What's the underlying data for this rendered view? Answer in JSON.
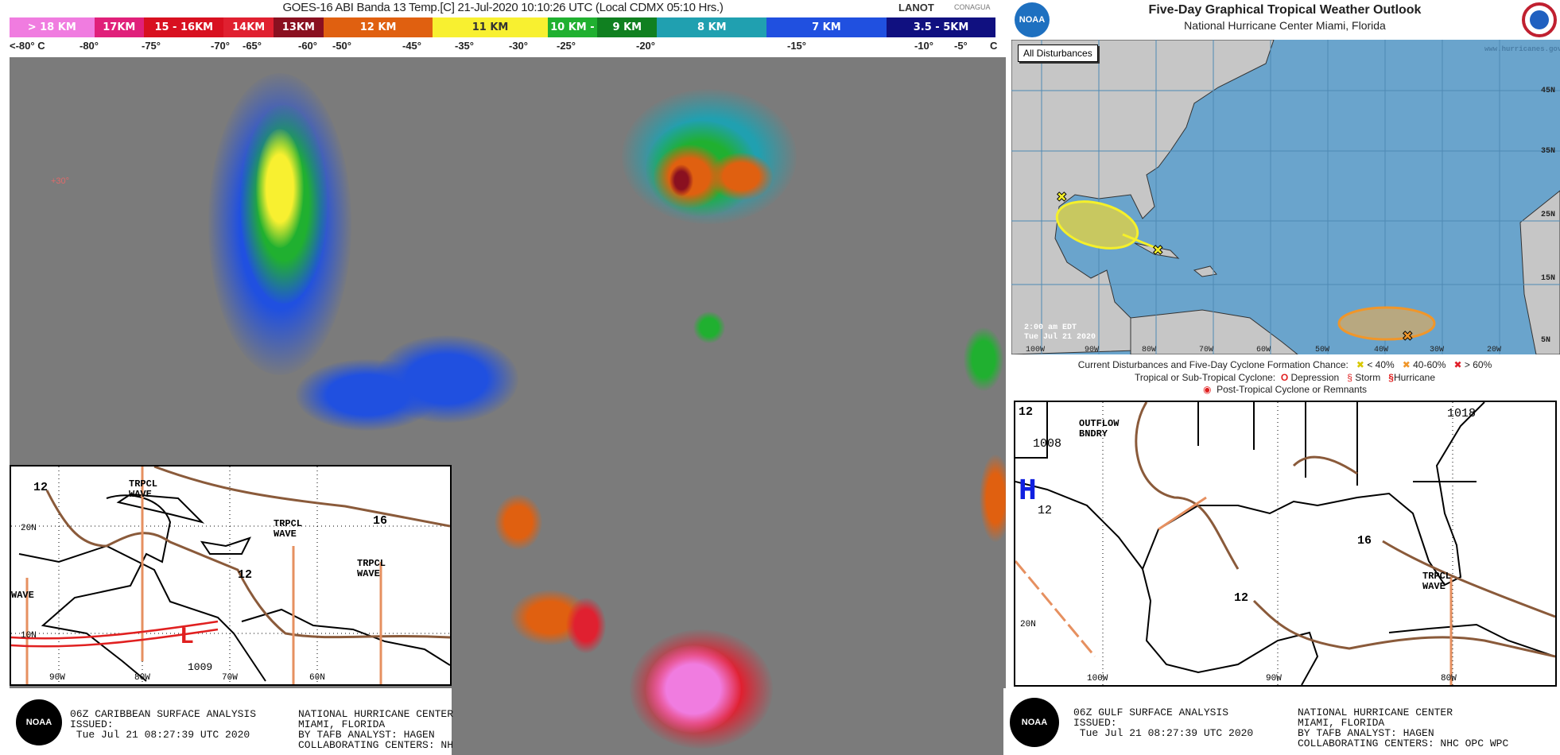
{
  "satellite": {
    "title": "GOES-16 ABI Banda 13 Temp.[C] 21-Jul-2020 10:10:26 UTC (Local CDMX  05:10 Hrs.)",
    "logos": [
      "LANOT",
      "CONAGUA"
    ],
    "color_scale": [
      {
        "label": "> 18 KM",
        "color": "#f07ce0"
      },
      {
        "label": "17KM",
        "color": "#e0207a"
      },
      {
        "label": "15 - 16KM",
        "color": "#d81020"
      },
      {
        "label": "14KM",
        "color": "#e02030"
      },
      {
        "label": "13KM",
        "color": "#8a1020"
      },
      {
        "label": "12 KM",
        "color": "#e06010"
      },
      {
        "label": "11 KM",
        "color": "#f8f030"
      },
      {
        "label": "10 KM -",
        "color": "#20b030"
      },
      {
        "label": "9 KM",
        "color": "#108020"
      },
      {
        "label": "8 KM",
        "color": "#20a0b0"
      },
      {
        "label": "7 KM",
        "color": "#2050e0"
      },
      {
        "label": "3.5 - 5KM",
        "color": "#101080"
      }
    ],
    "temperatures": [
      "<-80° C",
      "-80°",
      "-75°",
      "-70°",
      "-65°",
      "-60°",
      "-50°",
      "-45°",
      "-35°",
      "-30°",
      "-25°",
      "-20°",
      "-15°",
      "-10°",
      "-5°",
      "C"
    ],
    "lat_label": "+30°"
  },
  "caribbean": {
    "labels": {
      "isobar_12a": "12",
      "isobar_12b": "12",
      "isobar_16": "16",
      "wave1": "TRPCL\nWAVE",
      "wave2": "TRPCL\nWAVE",
      "wave3": "TRPCL\nWAVE",
      "wave_left": "WAVE",
      "lat20": "20N",
      "lat10": "10N",
      "lon90": "90W",
      "lon80": "80W",
      "lon70": "70W",
      "lon60": "60N",
      "low": "L",
      "low_pressure": "1009"
    },
    "caption": {
      "left": "06Z CARIBBEAN SURFACE ANALYSIS\nISSUED:\n Tue Jul 21 08:27:39 UTC 2020",
      "right": "NATIONAL HURRICANE CENTER\nMIAMI, FLORIDA\nBY TAFB ANALYST: HAGEN\nCOLLABORATING CENTERS: NH",
      "logo": "NOAA"
    }
  },
  "outlook": {
    "title": "Five-Day Graphical Tropical Weather Outlook",
    "subtitle": "National Hurricane Center  Miami, Florida",
    "button": "All Disturbances",
    "website": "www.hurricanes.gov",
    "timestamp": [
      "2:00 am EDT",
      "Tue Jul 21 2020"
    ],
    "lat_labels": [
      "45N",
      "35N",
      "25N",
      "15N",
      "5N"
    ],
    "lon_labels": [
      "100W",
      "90W",
      "80W",
      "70W",
      "60W",
      "50W",
      "40W",
      "30W",
      "20W"
    ],
    "colors": {
      "ocean": "#6aa4cc",
      "land": "#c6c6c6",
      "low_chance": "#f5f02a",
      "medium_chance": "#f0962a",
      "high_chance": "#e0202a"
    },
    "legend": {
      "line1": "Current Disturbances and Five-Day Cyclone Formation Chance:",
      "chances": [
        "< 40%",
        "40-60%",
        "> 60%"
      ],
      "line2": "Tropical or Sub-Tropical Cyclone:",
      "types": [
        "Depression",
        "Storm",
        "Hurricane"
      ],
      "line3": "Post-Tropical Cyclone or Remnants"
    }
  },
  "gulf": {
    "labels": {
      "corner12": "12",
      "outflow": "OUTFLOW\nBNDRY",
      "p1008": "1008",
      "high": "H",
      "h12": "12",
      "isobar16": "16",
      "isobar12": "12",
      "wave": "TRPCL\nWAVE",
      "p1018": "1018",
      "lat20": "20N",
      "lon100": "100W",
      "lon90": "90W",
      "lon80": "80W"
    },
    "caption": {
      "left": "06Z GULF SURFACE ANALYSIS\nISSUED:\n Tue Jul 21 08:27:39 UTC 2020",
      "right": "NATIONAL HURRICANE CENTER\nMIAMI, FLORIDA\nBY TAFB ANALYST: HAGEN\nCOLLABORATING CENTERS: NHC OPC WPC",
      "logo": "NOAA"
    }
  }
}
